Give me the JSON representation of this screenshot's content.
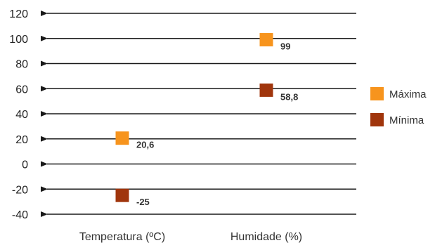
{
  "chart_data": {
    "type": "scatter",
    "title": "",
    "xlabel": "",
    "ylabel": "",
    "categories": [
      "Temperatura (ºC)",
      "Humidade (%)"
    ],
    "series": [
      {
        "name": "Máxima",
        "color": "#f7941d",
        "values": [
          20.6,
          99
        ],
        "labels": [
          "20,6",
          "99"
        ]
      },
      {
        "name": "Mínima",
        "color": "#a0350c",
        "values": [
          -25,
          58.8
        ],
        "labels": [
          "-25",
          "58,8"
        ]
      }
    ],
    "y_ticks": [
      120,
      100,
      80,
      60,
      40,
      20,
      0,
      -20,
      -40
    ],
    "ylim": [
      -40,
      120
    ],
    "grid": true,
    "grid_style": "arrow-left",
    "legend": "right"
  }
}
